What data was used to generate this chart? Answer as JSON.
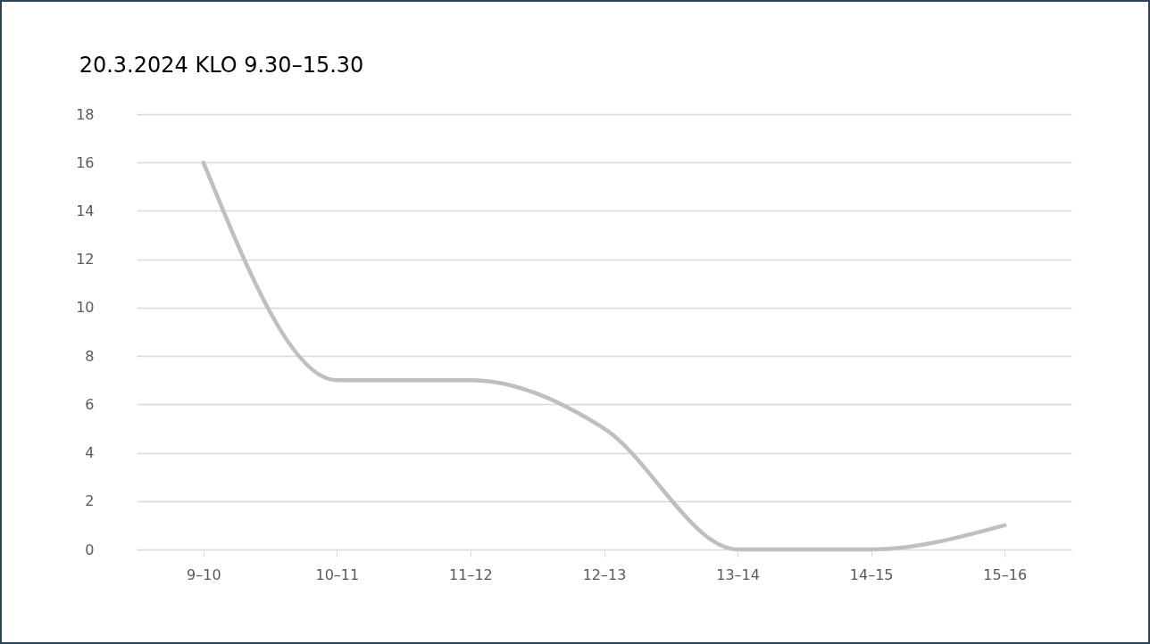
{
  "chart_data": {
    "type": "line",
    "title": "20.3.2024 KLO 9.30–15.30",
    "categories": [
      "9–10",
      "10–11",
      "11–12",
      "12–13",
      "13–14",
      "14–15",
      "15–16"
    ],
    "series": [
      {
        "color": "#bfbfbf",
        "values": [
          16,
          7,
          7,
          5,
          0,
          0,
          1
        ]
      }
    ],
    "ylim": [
      0,
      18
    ],
    "yticks": [
      0,
      2,
      4,
      6,
      8,
      10,
      12,
      14,
      16,
      18
    ],
    "grid": "y",
    "legend": false,
    "marker": "none",
    "line_style": "solid"
  }
}
